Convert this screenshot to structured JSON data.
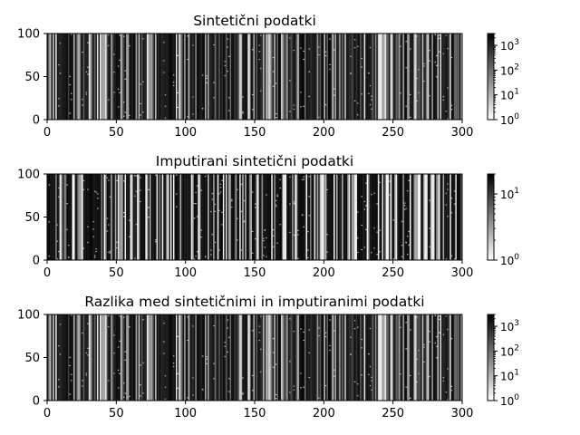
{
  "chart_data": [
    {
      "type": "heatmap",
      "title": "Sintetični podatki",
      "xlim": [
        0,
        300
      ],
      "ylim": [
        0,
        100
      ],
      "xticks": [
        "0",
        "50",
        "100",
        "150",
        "200",
        "250",
        "300"
      ],
      "yticks": [
        "0",
        "50",
        "100"
      ],
      "colormap": "gray_r",
      "colorbar": {
        "scale": "log",
        "range": [
          1,
          3000
        ],
        "ticks": [
          {
            "base": "10",
            "exp": "0"
          },
          {
            "base": "10",
            "exp": "1"
          },
          {
            "base": "10",
            "exp": "2"
          },
          {
            "base": "10",
            "exp": "3"
          }
        ]
      },
      "seed": 7
    },
    {
      "type": "heatmap",
      "title": "Imputirani sintetični podatki",
      "xlim": [
        0,
        300
      ],
      "ylim": [
        0,
        100
      ],
      "xticks": [
        "0",
        "50",
        "100",
        "150",
        "200",
        "250",
        "300"
      ],
      "yticks": [
        "0",
        "50",
        "100"
      ],
      "colormap": "gray_r",
      "colorbar": {
        "scale": "log",
        "range": [
          1,
          20
        ],
        "ticks": [
          {
            "base": "10",
            "exp": "0"
          },
          {
            "base": "10",
            "exp": "1"
          }
        ]
      },
      "seed": 13
    },
    {
      "type": "heatmap",
      "title": "Razlika med sintetičnimi in imputiranimi podatki",
      "xlim": [
        0,
        300
      ],
      "ylim": [
        0,
        100
      ],
      "xticks": [
        "0",
        "50",
        "100",
        "150",
        "200",
        "250",
        "300"
      ],
      "yticks": [
        "0",
        "50",
        "100"
      ],
      "colormap": "gray_r",
      "colorbar": {
        "scale": "log",
        "range": [
          1,
          3000
        ],
        "ticks": [
          {
            "base": "10",
            "exp": "0"
          },
          {
            "base": "10",
            "exp": "1"
          },
          {
            "base": "10",
            "exp": "2"
          },
          {
            "base": "10",
            "exp": "3"
          }
        ]
      },
      "seed": 7
    }
  ]
}
